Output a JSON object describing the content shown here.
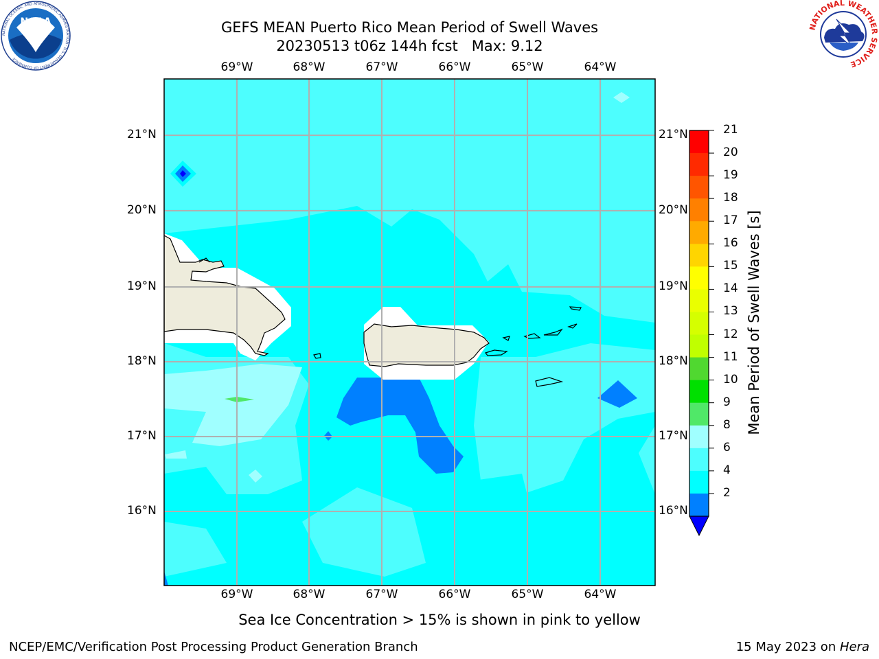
{
  "header": {
    "title_line1": "GEFS MEAN Puerto Rico Mean Period of Swell Waves",
    "title_line2": "20230513 t06z 144h fcst   Max: 9.12"
  },
  "logos": {
    "noaa": {
      "text": "NOAA",
      "ring_text": "NATIONAL OCEANIC AND ATMOSPHERIC ADMINISTRATION · U.S. DEPARTMENT OF COMMERCE",
      "icon": "noaa-logo"
    },
    "nws": {
      "ring_text": "NATIONAL WEATHER SERVICE",
      "icon": "nws-logo"
    }
  },
  "map": {
    "lon_labels": [
      "69°W",
      "68°W",
      "67°W",
      "66°W",
      "65°W",
      "64°W"
    ],
    "lat_labels": [
      "21°N",
      "20°N",
      "19°N",
      "18°N",
      "17°N",
      "16°N"
    ],
    "land_color": "#eeecdc",
    "grid_color": "#b0b0b0"
  },
  "colorbar": {
    "label": "Mean Period of Swell Waves [s]",
    "ticks": [
      "21",
      "20",
      "19",
      "18",
      "17",
      "16",
      "15",
      "14",
      "13",
      "12",
      "11",
      "10",
      "9",
      "8",
      "6",
      "4",
      "2"
    ],
    "colors": [
      "#ff0000",
      "#ff2a00",
      "#ff5500",
      "#ff8000",
      "#ffaa00",
      "#ffd500",
      "#ffff00",
      "#eaff00",
      "#d5ff00",
      "#c0ff00",
      "#50d830",
      "#00e000",
      "#50e868",
      "#a0ffff",
      "#4dfefe",
      "#00ffff",
      "#0080ff"
    ],
    "under_color": "#0000ff"
  },
  "footer": {
    "note": "Sea Ice Concentration > 15% is shown in pink to yellow",
    "left": "NCEP/EMC/Verification Post Processing Product Generation Branch",
    "right_prefix": "15 May 2023 on ",
    "right_italic": "Hera"
  }
}
